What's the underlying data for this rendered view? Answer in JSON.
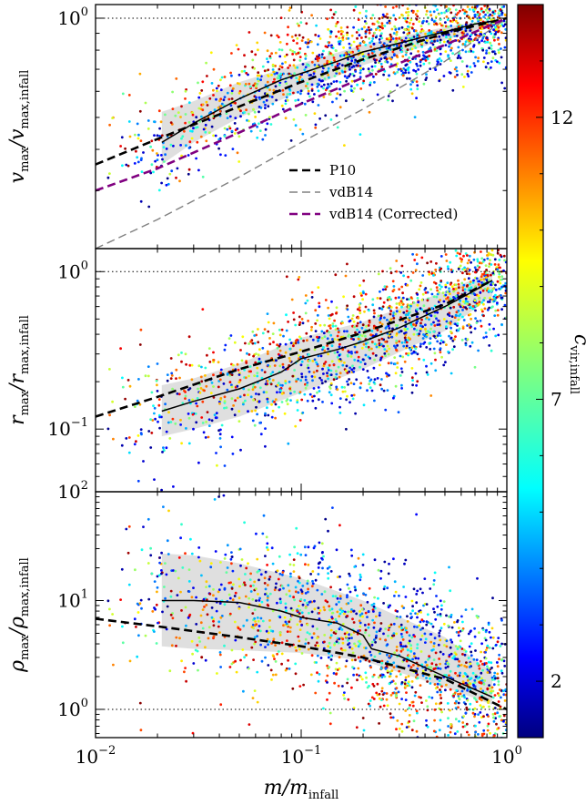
{
  "chart_data": [
    {
      "type": "scatter",
      "panel": "top",
      "ylabel_main": "v",
      "ylabel_sub_num": "max",
      "ylabel_sub_den": "max,infall",
      "y_scale": "log",
      "x_scale": "log",
      "xlim": [
        0.01,
        1.0
      ],
      "ylim": [
        0.2,
        1.1
      ],
      "y_tick_labels": [
        {
          "base": "10",
          "exp": "0",
          "value": 1.0
        }
      ],
      "reference_line": 1.0,
      "legend_position": "lower-right",
      "series": [
        {
          "name": "P10",
          "style": "black-dashed",
          "x": [
            0.01,
            0.02,
            0.05,
            0.1,
            0.2,
            0.5,
            1.0
          ],
          "y": [
            0.36,
            0.43,
            0.54,
            0.64,
            0.75,
            0.9,
            1.0
          ]
        },
        {
          "name": "vdB14",
          "style": "gray-dashed",
          "x": [
            0.01,
            0.02,
            0.05,
            0.1,
            0.2,
            0.5,
            1.0
          ],
          "y": [
            0.2,
            0.245,
            0.33,
            0.42,
            0.53,
            0.74,
            1.0
          ]
        },
        {
          "name": "vdB14 (Corrected)",
          "style": "purple-dashed",
          "x": [
            0.01,
            0.02,
            0.05,
            0.1,
            0.2,
            0.5,
            1.0
          ],
          "y": [
            0.3,
            0.35,
            0.45,
            0.55,
            0.66,
            0.83,
            1.0
          ]
        },
        {
          "name": "",
          "style": "black-solid-median",
          "x": [
            0.021,
            0.03,
            0.05,
            0.08,
            0.1,
            0.15,
            0.2,
            0.3,
            0.5,
            0.7,
            0.85
          ],
          "y": [
            0.42,
            0.48,
            0.57,
            0.65,
            0.68,
            0.74,
            0.79,
            0.84,
            0.91,
            0.96,
            0.98
          ]
        }
      ],
      "band": {
        "x": [
          0.021,
          0.03,
          0.05,
          0.1,
          0.2,
          0.5,
          0.85
        ],
        "lo": [
          0.36,
          0.42,
          0.5,
          0.6,
          0.72,
          0.86,
          0.94
        ],
        "hi": [
          0.52,
          0.56,
          0.64,
          0.73,
          0.83,
          0.94,
          0.99
        ]
      }
    },
    {
      "type": "scatter",
      "panel": "middle",
      "ylabel_main": "r",
      "ylabel_sub_num": "max",
      "ylabel_sub_den": "max,infall",
      "y_scale": "log",
      "x_scale": "log",
      "xlim": [
        0.01,
        1.0
      ],
      "ylim": [
        0.04,
        1.4
      ],
      "y_tick_labels": [
        {
          "base": "10",
          "exp": "0",
          "value": 1.0
        },
        {
          "base": "10",
          "exp": "−1",
          "value": 0.1
        }
      ],
      "reference_line": 1.0,
      "series": [
        {
          "name": "P10",
          "style": "black-dashed",
          "x": [
            0.01,
            0.02,
            0.05,
            0.1,
            0.2,
            0.5,
            0.85
          ],
          "y": [
            0.12,
            0.16,
            0.24,
            0.31,
            0.41,
            0.62,
            0.88
          ]
        },
        {
          "name": "",
          "style": "black-solid-median",
          "x": [
            0.021,
            0.03,
            0.05,
            0.08,
            0.1,
            0.15,
            0.2,
            0.3,
            0.5,
            0.7,
            0.85
          ],
          "y": [
            0.13,
            0.15,
            0.18,
            0.23,
            0.28,
            0.32,
            0.36,
            0.44,
            0.6,
            0.76,
            0.88
          ]
        }
      ],
      "band": {
        "x": [
          0.021,
          0.03,
          0.05,
          0.1,
          0.2,
          0.5,
          0.85
        ],
        "lo": [
          0.09,
          0.1,
          0.12,
          0.17,
          0.24,
          0.42,
          0.7
        ],
        "hi": [
          0.19,
          0.21,
          0.26,
          0.38,
          0.48,
          0.75,
          1.0
        ]
      }
    },
    {
      "type": "scatter",
      "panel": "bottom",
      "ylabel_main": "ρ",
      "ylabel_sub_num": "max",
      "ylabel_sub_den": "max,infall",
      "y_scale": "log",
      "x_scale": "log",
      "xlim": [
        0.01,
        1.0
      ],
      "ylim": [
        0.55,
        100
      ],
      "y_tick_labels": [
        {
          "base": "10",
          "exp": "2",
          "value": 100
        },
        {
          "base": "10",
          "exp": "1",
          "value": 10
        },
        {
          "base": "10",
          "exp": "0",
          "value": 1.0
        }
      ],
      "reference_line": 1.0,
      "x_tick_labels": [
        {
          "base": "10",
          "exp": "−2",
          "value": 0.01
        },
        {
          "base": "10",
          "exp": "−1",
          "value": 0.1
        },
        {
          "base": "10",
          "exp": "0",
          "value": 1.0
        }
      ],
      "xlabel_main": "m",
      "xlabel_sub": "infall",
      "series": [
        {
          "name": "P10",
          "style": "black-dashed",
          "x": [
            0.01,
            0.02,
            0.05,
            0.1,
            0.2,
            0.5,
            1.0
          ],
          "y": [
            6.8,
            5.8,
            4.6,
            3.8,
            3.0,
            1.9,
            1.0
          ]
        },
        {
          "name": "",
          "style": "black-solid-median",
          "x": [
            0.021,
            0.03,
            0.05,
            0.08,
            0.1,
            0.15,
            0.2,
            0.22,
            0.3,
            0.5,
            0.85
          ],
          "y": [
            10.0,
            10.0,
            9.6,
            8.0,
            7.0,
            6.2,
            4.8,
            3.6,
            3.1,
            2.0,
            1.3
          ]
        }
      ],
      "band": {
        "x": [
          0.021,
          0.03,
          0.05,
          0.1,
          0.2,
          0.5,
          0.85
        ],
        "lo": [
          3.8,
          3.6,
          3.5,
          3.3,
          2.8,
          1.6,
          1.1
        ],
        "hi": [
          27,
          26,
          22,
          16,
          10,
          4.6,
          2.2
        ]
      }
    }
  ],
  "colorbar": {
    "label": "c",
    "label_sub": "vir,infall",
    "range": [
      1,
      14
    ],
    "ticks": [
      {
        "label": "2",
        "value": 2
      },
      {
        "label": "7",
        "value": 7
      },
      {
        "label": "12",
        "value": 12
      }
    ],
    "colormap": "jet"
  },
  "legend": [
    {
      "label": "P10",
      "color": "#000000"
    },
    {
      "label": "vdB14",
      "color": "#808080"
    },
    {
      "label": "vdB14 (Corrected)",
      "color": "#800080"
    }
  ]
}
